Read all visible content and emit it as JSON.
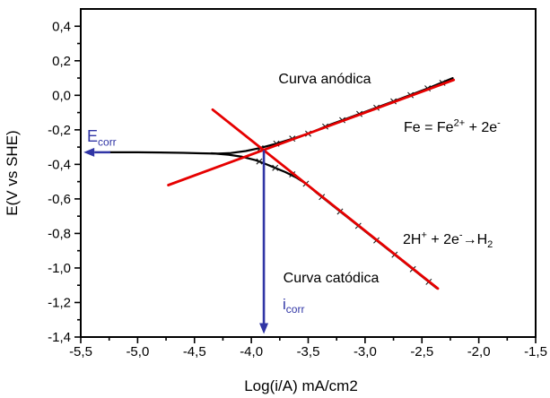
{
  "page": {
    "background": "#ffffff"
  },
  "colors": {
    "curve_black": "#000000",
    "tafel_red": "#e60000",
    "annotation_blue": "#3035a5",
    "marker": "#1a1a1a",
    "axis": "#000000"
  },
  "chart_data": {
    "type": "line",
    "title": "",
    "xlabel": "Log(i/A) mA/cm2",
    "ylabel": "E(V vs SHE)",
    "xlim": [
      -5.5,
      -1.5
    ],
    "ylim": [
      -1.4,
      0.5
    ],
    "grid": false,
    "legend": "none",
    "x_ticks": [
      {
        "v": -5.5,
        "label": "-5,5"
      },
      {
        "v": -5.0,
        "label": "-5,0"
      },
      {
        "v": -4.5,
        "label": "-4,5"
      },
      {
        "v": -4.0,
        "label": "-4,0"
      },
      {
        "v": -3.5,
        "label": "-3,5"
      },
      {
        "v": -3.0,
        "label": "-3,0"
      },
      {
        "v": -2.5,
        "label": "-2,5"
      },
      {
        "v": -2.0,
        "label": "-2,0"
      },
      {
        "v": -1.5,
        "label": "-1,5"
      }
    ],
    "y_ticks": [
      {
        "v": 0.4,
        "label": "0,4"
      },
      {
        "v": 0.2,
        "label": "0,2"
      },
      {
        "v": 0.0,
        "label": "0,0"
      },
      {
        "v": -0.2,
        "label": "-0,2"
      },
      {
        "v": -0.4,
        "label": "-0,4"
      },
      {
        "v": -0.6,
        "label": "-0,6"
      },
      {
        "v": -0.8,
        "label": "-0,8"
      },
      {
        "v": -1.0,
        "label": "-1,0"
      },
      {
        "v": -1.2,
        "label": "-1,2"
      },
      {
        "v": -1.4,
        "label": "-1,4"
      }
    ],
    "x_minor": [
      -5.25,
      -4.75,
      -4.25,
      -3.75,
      -3.25,
      -2.75,
      -2.25,
      -1.75
    ],
    "y_minor": [
      0.3,
      0.1,
      -0.1,
      -0.3,
      -0.5,
      -0.7,
      -0.9,
      -1.1,
      -1.3
    ],
    "series": [
      {
        "name": "experimental-anodic-branch",
        "color": "#000000",
        "width": 2.2,
        "on_top": false,
        "points": [
          [
            -5.245,
            -0.33
          ],
          [
            -5.0,
            -0.33
          ],
          [
            -4.8,
            -0.331
          ],
          [
            -4.6,
            -0.333
          ],
          [
            -4.45,
            -0.336
          ],
          [
            -4.3,
            -0.338
          ],
          [
            -4.18,
            -0.334
          ],
          [
            -4.05,
            -0.323
          ],
          [
            -3.93,
            -0.306
          ],
          [
            -3.8,
            -0.284
          ],
          [
            -3.65,
            -0.254
          ],
          [
            -3.5,
            -0.222
          ],
          [
            -3.3,
            -0.168
          ],
          [
            -3.0,
            -0.096
          ],
          [
            -2.7,
            -0.022
          ],
          [
            -2.45,
            0.04
          ],
          [
            -2.23,
            0.099
          ]
        ]
      },
      {
        "name": "experimental-cathodic-branch",
        "color": "#000000",
        "width": 2.2,
        "on_top": false,
        "points": [
          [
            -4.35,
            -0.336
          ],
          [
            -4.2,
            -0.344
          ],
          [
            -4.08,
            -0.356
          ],
          [
            -3.97,
            -0.374
          ],
          [
            -3.88,
            -0.396
          ],
          [
            -3.8,
            -0.418
          ],
          [
            -3.7,
            -0.445
          ],
          [
            -3.6,
            -0.478
          ],
          [
            -3.52,
            -0.512
          ],
          [
            -3.42,
            -0.568
          ],
          [
            -3.3,
            -0.631
          ],
          [
            -3.1,
            -0.735
          ],
          [
            -2.9,
            -0.84
          ],
          [
            -2.7,
            -0.944
          ],
          [
            -2.5,
            -1.049
          ],
          [
            -2.37,
            -1.117
          ]
        ]
      },
      {
        "name": "tafel-fit-anodic",
        "color": "#e60000",
        "width": 2.8,
        "on_top": true,
        "points": [
          [
            -4.73,
            -0.52
          ],
          [
            -2.22,
            0.089
          ]
        ]
      },
      {
        "name": "tafel-fit-cathodic",
        "color": "#e60000",
        "width": 2.8,
        "on_top": true,
        "points": [
          [
            -4.34,
            -0.083
          ],
          [
            -2.36,
            -1.119
          ]
        ]
      }
    ],
    "markers": [
      {
        "name": "anodic-data-markers",
        "symbol": "x",
        "color": "#1a1a1a",
        "points": [
          [
            -3.92,
            -0.307
          ],
          [
            -3.78,
            -0.28
          ],
          [
            -3.64,
            -0.251
          ],
          [
            -3.5,
            -0.222
          ],
          [
            -3.35,
            -0.181
          ],
          [
            -3.2,
            -0.144
          ],
          [
            -3.05,
            -0.108
          ],
          [
            -2.9,
            -0.072
          ],
          [
            -2.75,
            -0.035
          ],
          [
            -2.6,
            0.001
          ],
          [
            -2.45,
            0.04
          ],
          [
            -2.32,
            0.072
          ]
        ]
      },
      {
        "name": "cathodic-data-markers",
        "symbol": "x",
        "color": "#1a1a1a",
        "points": [
          [
            -3.93,
            -0.383
          ],
          [
            -3.79,
            -0.42
          ],
          [
            -3.64,
            -0.458
          ],
          [
            -3.52,
            -0.512
          ],
          [
            -3.38,
            -0.589
          ],
          [
            -3.22,
            -0.673
          ],
          [
            -3.06,
            -0.756
          ],
          [
            -2.9,
            -0.84
          ],
          [
            -2.74,
            -0.923
          ],
          [
            -2.58,
            -1.007
          ],
          [
            -2.44,
            -1.08
          ]
        ]
      }
    ],
    "arrows": [
      {
        "name": "ecorr-arrow",
        "color": "#3035a5",
        "width": 2.4,
        "from": [
          -5.24,
          -0.33
        ],
        "to": [
          -5.475,
          -0.33
        ]
      },
      {
        "name": "icorr-arrow",
        "color": "#3035a5",
        "width": 2.6,
        "from": [
          -3.89,
          -0.318
        ],
        "to": [
          -3.89,
          -1.382
        ]
      }
    ],
    "annotations": [
      {
        "name": "curva-anodica-label",
        "color": "#000000",
        "size": 16,
        "anchor": "middle",
        "px": [
          362,
          93
        ],
        "parts": [
          {
            "t": "Curva anódica"
          }
        ]
      },
      {
        "name": "curva-catodica-label",
        "color": "#000000",
        "size": 16,
        "anchor": "middle",
        "px": [
          369,
          315
        ],
        "parts": [
          {
            "t": "Curva catódica"
          }
        ]
      },
      {
        "name": "anodic-reaction-label",
        "color": "#000000",
        "size": 16,
        "anchor": "start",
        "px": [
          450,
          147
        ],
        "parts": [
          {
            "t": "Fe = Fe"
          },
          {
            "t": "2+",
            "v": "sup"
          },
          {
            "t": " +  2e"
          },
          {
            "t": "-",
            "v": "sup"
          }
        ]
      },
      {
        "name": "cathodic-reaction-label",
        "color": "#000000",
        "size": 16,
        "anchor": "start",
        "px": [
          449,
          272
        ],
        "parts": [
          {
            "t": "2H"
          },
          {
            "t": "+",
            "v": "sup"
          },
          {
            "t": " +  2e"
          },
          {
            "t": "-",
            "v": "sup"
          },
          {
            "t": "→"
          },
          {
            "t": "H"
          },
          {
            "t": "2",
            "v": "sub"
          }
        ]
      },
      {
        "name": "ecorr-label",
        "color": "#3035a5",
        "size": 18,
        "anchor": "start",
        "px": [
          97,
          158
        ],
        "parts": [
          {
            "t": "E"
          },
          {
            "t": "corr",
            "v": "sub"
          }
        ]
      },
      {
        "name": "icorr-label",
        "color": "#3035a5",
        "size": 17,
        "anchor": "start",
        "px": [
          315,
          345
        ],
        "parts": [
          {
            "t": "i"
          },
          {
            "t": "corr",
            "v": "sub"
          }
        ]
      }
    ],
    "key_values": {
      "Ecorr_V_vs_SHE": -0.33,
      "log_icorr_mA_cm2": -3.9
    }
  }
}
